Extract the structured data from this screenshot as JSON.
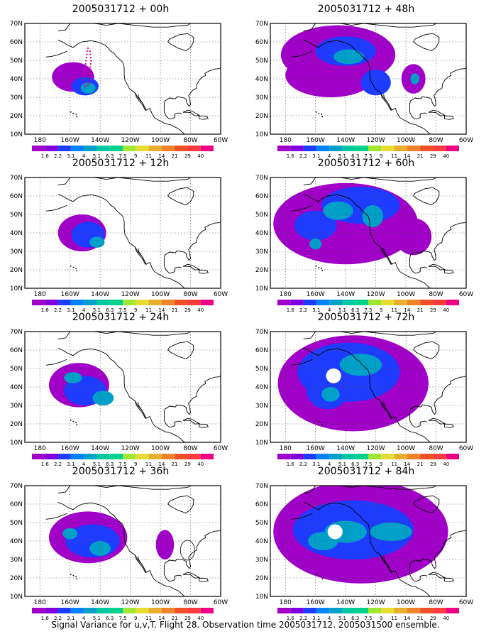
{
  "footer": "Signal Variance for u,v,T. Flight 28. Observation time 2005031712. 2005031500 ensemble.",
  "lat_labels": [
    "70N",
    "60N",
    "50N",
    "40N",
    "30N",
    "20N",
    "10N"
  ],
  "lon_labels": [
    "180",
    "160W",
    "140W",
    "120W",
    "100W",
    "80W",
    "60W"
  ],
  "colorbar": {
    "colors": [
      "#a000c8",
      "#8200dc",
      "#1e3cff",
      "#0082ff",
      "#00a0c8",
      "#00c8a0",
      "#00d28c",
      "#a0e632",
      "#e6dc32",
      "#e6af2d",
      "#f08228",
      "#f05028",
      "#fa3c3c",
      "#f00082"
    ],
    "labels": [
      "1.6",
      "2.2",
      "3.1",
      "4",
      "5.1",
      "6.3",
      "7.5",
      "9",
      "11",
      "14",
      "21",
      "29",
      "40"
    ]
  },
  "panels": [
    {
      "title": "2005031712 + 00h",
      "lead_hours": 0
    },
    {
      "title": "2005031712 + 48h",
      "lead_hours": 48
    },
    {
      "title": "2005031712 + 12h",
      "lead_hours": 12
    },
    {
      "title": "2005031712 + 60h",
      "lead_hours": 60
    },
    {
      "title": "2005031712 + 24h",
      "lead_hours": 24
    },
    {
      "title": "2005031712 + 72h",
      "lead_hours": 72
    },
    {
      "title": "2005031712 + 36h",
      "lead_hours": 36
    },
    {
      "title": "2005031712 + 84h",
      "lead_hours": 84
    }
  ]
}
